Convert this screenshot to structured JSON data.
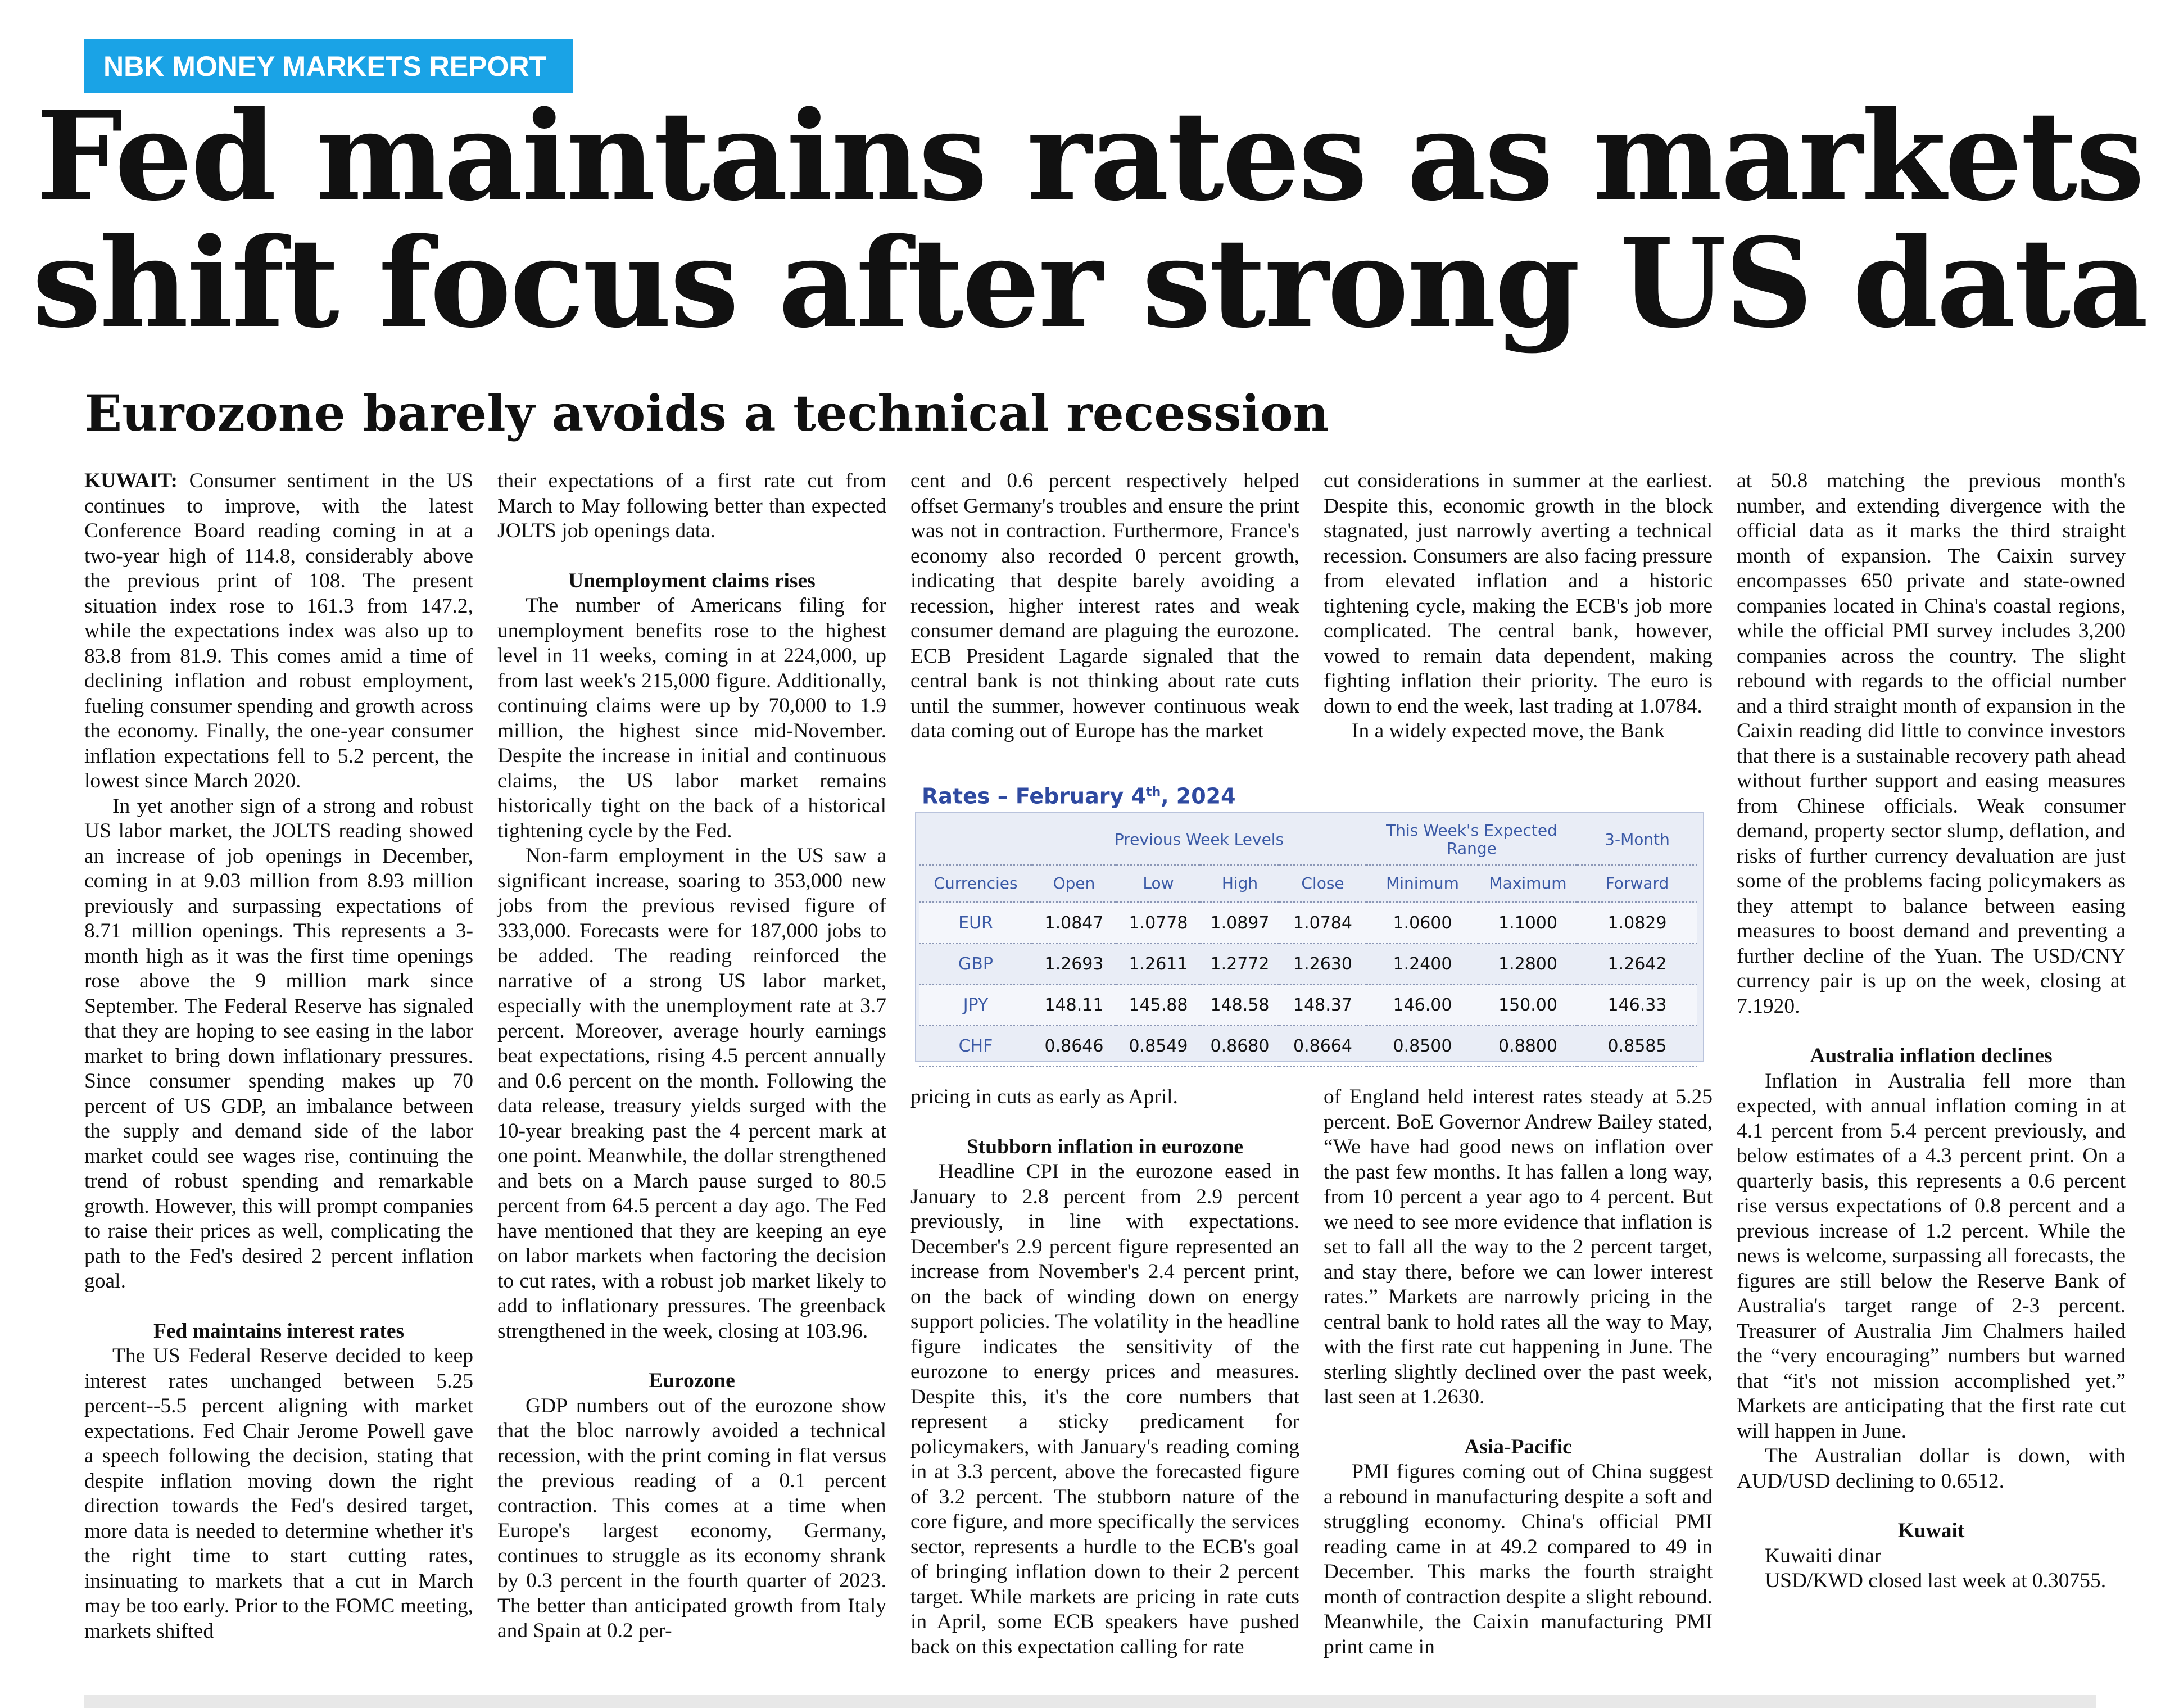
{
  "report_tag": "NBK MONEY MARKETS REPORT",
  "headline": {
    "line1": "Fed maintains rates as markets",
    "line2": "shift focus after strong US data"
  },
  "subheadline": "Eurozone barely avoids a technical recession",
  "article": {
    "dateline": "KUWAIT:",
    "col1": {
      "p1": "Consumer sentiment in the US continues to improve, with the latest Conference Board reading coming in at a two-year high of 114.8, considerably above the previous print of 108. The present situation index rose to 161.3 from 147.2, while the expectations index was also up to 83.8 from 81.9. This comes amid a time of declining inflation and robust employment, fueling consumer spending and growth across the economy. Finally, the one-year consumer inflation expectations fell to 5.2 percent, the lowest since March 2020.",
      "p2": "In yet another sign of a strong and robust US labor market, the JOLTS reading showed an increase of job openings in December, coming in at 9.03 million from 8.93 million previously and surpassing expectations of 8.71 million openings. This represents a 3-month high as it was the first time openings rose above the 9 million mark since September. The Federal Reserve has signaled that they are hoping to see easing in the labor market to bring down inflationary pressures. Since consumer spending makes up 70 percent of US GDP, an imbalance between the supply and demand side of the labor market could see wages rise, continuing the trend of robust spending and remarkable growth. However, this will prompt companies to raise their prices as well, complicating the path to the Fed's desired 2 percent inflation goal.",
      "h_fed": "Fed maintains interest rates",
      "p3": "The US Federal Reserve decided to keep interest rates unchanged between 5.25 percent--5.5 percent aligning with market expectations. Fed Chair Jerome Powell gave a speech following the decision, stating that despite inflation moving down the right direction towards the Fed's desired target, more data is needed to determine whether it's the right time to start cutting rates, insinuating to markets that a cut in March may be too early. Prior to the FOMC meeting, markets shifted"
    },
    "col2": {
      "p1": "their expectations of a first rate cut from March to May following better than expected JOLTS job openings data.",
      "h_unemp": "Unemployment claims rises",
      "p2": "The number of Americans filing for unemployment benefits rose to the highest level in 11 weeks, coming in at 224,000, up from last week's 215,000 figure. Additionally, continuing claims were up by 70,000 to 1.9 million, the highest since mid-November. Despite the increase in initial and continuous claims, the US labor market remains historically tight on the back of a historical tightening cycle by the Fed.",
      "p3": "Non-farm employment in the US saw a significant increase, soaring to 353,000 new jobs from the previous revised figure of 333,000. Forecasts were for 187,000 jobs to be added. The reading reinforced the narrative of a strong US labor market, especially with the unemployment rate at 3.7 percent. Moreover, average hourly earnings beat expectations, rising 4.5 percent annually and 0.6 percent on the month. Following the data release, treasury yields surged with the 10-year breaking past the 4 percent mark at one point. Meanwhile, the dollar strengthened and bets on a March pause surged to 80.5 percent from 64.5 percent a day ago. The Fed have mentioned that they are keeping an eye on labor markets when factoring the decision to cut rates, with a robust job market likely to add to inflationary pressures. The greenback strengthened in the week, closing at 103.96.",
      "h_euro": "Eurozone",
      "p4": "GDP numbers out of the eurozone show that the bloc narrowly avoided a technical recession, with the print coming in flat versus the previous reading of a 0.1 percent contraction. This comes at a time when Europe's largest economy, Germany, continues to struggle as its economy shrank by 0.3 percent in the fourth quarter of 2023. The better than anticipated growth from Italy and Spain at 0.2 per-"
    },
    "col3": {
      "p1": "cent and 0.6 percent respectively helped offset Germany's troubles and ensure the print was not in contraction. Furthermore, France's economy also recorded 0 percent growth, indicating that despite barely avoiding a recession, higher interest rates and weak consumer demand are plaguing the eurozone. ECB President Lagarde signaled that the central bank is not thinking about rate cuts until the summer, however continuous weak data coming out of Europe has the market"
    },
    "col3b": {
      "p1": "pricing in cuts as early as April.",
      "h_stub": "Stubborn inflation in eurozone",
      "p2": "Headline CPI in the eurozone eased in January to 2.8 percent from 2.9 percent previously, in line with expectations. December's 2.9 percent figure represented an increase from November's 2.4 percent print, on the back of winding down on energy support policies. The volatility in the headline figure indicates the sensitivity of the eurozone to energy prices and measures. Despite this, it's the core numbers that represent a sticky predicament for policymakers, with January's reading coming in at 3.3 percent, above the forecasted figure of 3.2 percent. The stubborn nature of the core figure, and more specifically the services sector, represents a hurdle to the ECB's goal of bringing inflation down to their 2 percent target. While markets are pricing in rate cuts in April, some ECB speakers have pushed back on this expectation calling for rate"
    },
    "col4": {
      "p1": "cut considerations in summer at the earliest. Despite this, economic growth in the block stagnated, just narrowly averting a technical recession. Consumers are also facing pressure from elevated inflation and a historic tightening cycle, making the ECB's job more complicated. The central bank, however, vowed to remain data dependent, making fighting inflation their priority. The euro is down to end the week, last trading at 1.0784.",
      "p2": "In a widely expected move, the Bank"
    },
    "col4b": {
      "p1": "of England held interest rates steady at 5.25 percent. BoE Governor Andrew Bailey stated, “We have had good news on inflation over the past few months. It has fallen a long way, from 10 percent a year ago to 4 percent. But we need to see more evidence that inflation is set to fall all the way to the 2 percent target, and stay there, before we can lower interest rates.” Markets are narrowly pricing in the central bank to hold rates all the way to May, with the first rate cut happening in June. The sterling slightly declined over the past week, last seen at 1.2630.",
      "h_asia": "Asia-Pacific",
      "p2": "PMI figures coming out of China suggest a rebound in manufacturing despite a soft and struggling economy. China's official PMI reading came in at 49.2 compared to 49 in December. This marks the fourth straight month of contraction despite a slight rebound. Meanwhile, the Caixin manufacturing PMI print came in"
    },
    "col5": {
      "p1": "at 50.8 matching the previous month's number, and extending divergence with the official data as it marks the third straight month of expansion. The Caixin survey encompasses 650 private and state-owned companies located in China's coastal regions, while the official PMI survey includes 3,200 companies across the country. The slight rebound with regards to the official number and a third straight month of expansion in the Caixin reading did little to convince investors that there is a sustainable recovery path ahead without further support and easing measures from Chinese officials. Weak consumer demand, property sector slump, deflation, and risks of further currency devaluation are just some of the problems facing policymakers as they attempt to balance between easing measures to boost demand and preventing a further decline of the Yuan. The USD/CNY currency pair is up on the week, closing at 7.1920.",
      "h_aus": "Australia inflation declines",
      "p2": "Inflation in Australia fell more than expected, with annual inflation coming in at 4.1 percent from 5.4 percent previously, and below estimates of a 4.3 percent print. On a quarterly basis, this represents a 0.6 percent rise versus expectations of 0.8 percent and a previous increase of 1.2 percent. While the news is welcome, surpassing all forecasts, the figures are still below the Reserve Bank of Australia's target range of 2-3 percent. Treasurer of Australia Jim Chalmers hailed the “very encouraging” numbers but warned that “it's not mission accomplished yet.” Markets are anticipating that the first rate cut will happen in June.",
      "p3": "The Australian dollar is down, with AUD/USD declining to 0.6512.",
      "h_kuwait": "Kuwait",
      "p4": "Kuwaiti dinar",
      "p5": "USD/KWD closed last week at 0.30755."
    }
  },
  "rates_table": {
    "title_prefix": "Rates – February 4",
    "title_sup": "th",
    "title_suffix": ", 2024",
    "group_headers": {
      "previous": "Previous Week Levels",
      "expected": "This Week's Expected Range",
      "forward": "3-Month"
    },
    "columns": [
      "Currencies",
      "Open",
      "Low",
      "High",
      "Close",
      "Minimum",
      "Maximum",
      "Forward"
    ],
    "rows": [
      [
        "EUR",
        "1.0847",
        "1.0778",
        "1.0897",
        "1.0784",
        "1.0600",
        "1.1000",
        "1.0829"
      ],
      [
        "GBP",
        "1.2693",
        "1.2611",
        "1.2772",
        "1.2630",
        "1.2400",
        "1.2800",
        "1.2642"
      ],
      [
        "JPY",
        "148.11",
        "145.88",
        "148.58",
        "148.37",
        "146.00",
        "150.00",
        "146.33"
      ],
      [
        "CHF",
        "0.8646",
        "0.8549",
        "0.8680",
        "0.8664",
        "0.8500",
        "0.8800",
        "0.8585"
      ]
    ]
  }
}
